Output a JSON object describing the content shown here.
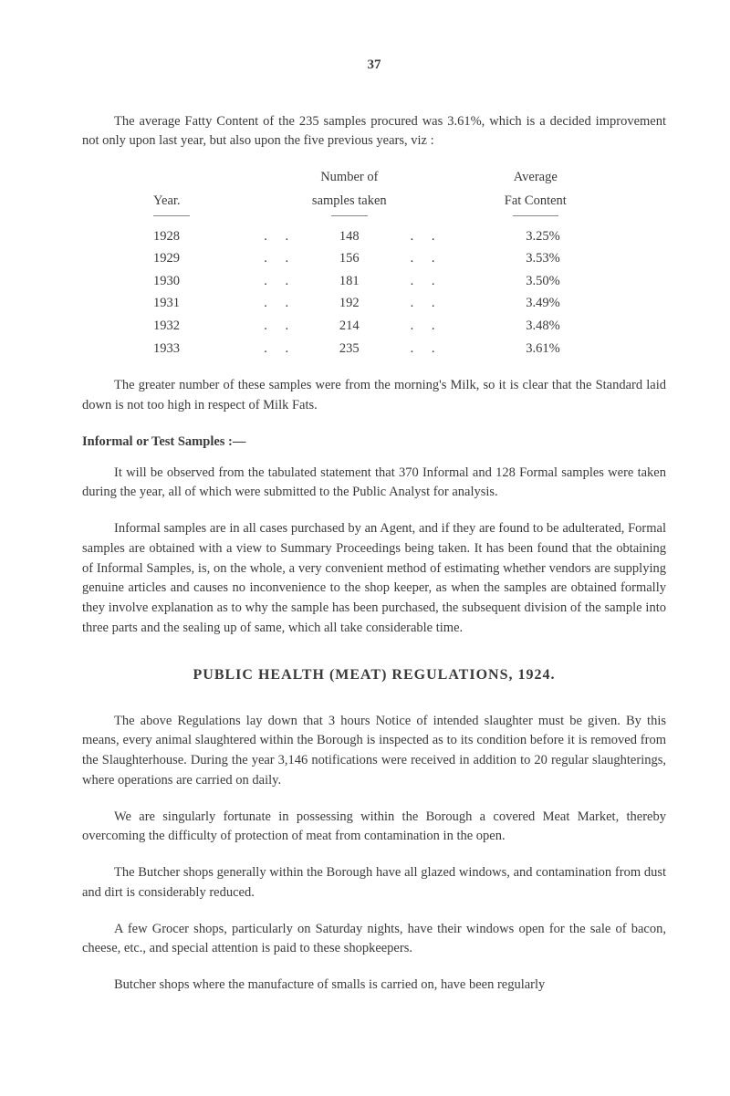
{
  "page_number": "37",
  "intro_paragraph": "The average Fatty Content of the 235 samples procured was 3.61%, which is a decided improvement not only upon last year, but also upon the five previous years, viz :",
  "table": {
    "headers": {
      "year": "Year.",
      "samples_line1": "Number of",
      "samples_line2": "samples taken",
      "fat_line1": "Average",
      "fat_line2": "Fat Content"
    },
    "rows": [
      {
        "year": "1928",
        "samples": "148",
        "fat": "3.25%"
      },
      {
        "year": "1929",
        "samples": "156",
        "fat": "3.53%"
      },
      {
        "year": "1930",
        "samples": "181",
        "fat": "3.50%"
      },
      {
        "year": "1931",
        "samples": "192",
        "fat": "3.49%"
      },
      {
        "year": "1932",
        "samples": "214",
        "fat": "3.48%"
      },
      {
        "year": "1933",
        "samples": "235",
        "fat": "3.61%"
      }
    ]
  },
  "paragraph_greater": "The greater number of these samples were from the morning's Milk, so it is clear that the Standard laid down is not too high in respect of Milk Fats.",
  "informal_label": "Informal or Test Samples :—",
  "paragraph_informal1": "It will be observed from the tabulated statement that 370 Informal and 128 Formal samples were taken during the year, all of which were submitted to the Public Analyst for analysis.",
  "paragraph_informal2": "Informal samples are in all cases purchased by an Agent, and if they are found to be adulterated, Formal samples are obtained with a view to Summary Proceedings being taken. It has been found that the obtaining of Informal Samples, is, on the whole, a very convenient method of estimating whether vendors are supplying genuine articles and causes no inconvenience to the shop keeper, as when the samples are obtained formally they involve explanation as to why the sample has been purchased, the subsequent division of the sample into three parts and the sealing up of same, which all take considerable time.",
  "section_title": "PUBLIC HEALTH (MEAT) REGULATIONS, 1924.",
  "paragraph_meat1": "The above Regulations lay down that 3 hours Notice of intended slaughter must be given. By this means, every animal slaughtered within the Borough is inspected as to its condition before it is removed from the Slaughterhouse. During the year 3,146 notifications were received in addition to 20 regular slaughterings, where operations are carried on daily.",
  "paragraph_meat2": "We are singularly fortunate in possessing within the Borough a covered Meat Market, thereby overcoming the difficulty of protection of meat from contamination in the open.",
  "paragraph_meat3": "The Butcher shops generally within the Borough have all glazed windows, and contamination from dust and dirt is considerably reduced.",
  "paragraph_meat4": "A few Grocer shops, particularly on Saturday nights, have their windows open for the sale of bacon, cheese, etc., and special attention is paid to these shopkeepers.",
  "paragraph_meat5": "Butcher shops where the manufacture of smalls is carried on, have been regularly",
  "dots": ". ."
}
